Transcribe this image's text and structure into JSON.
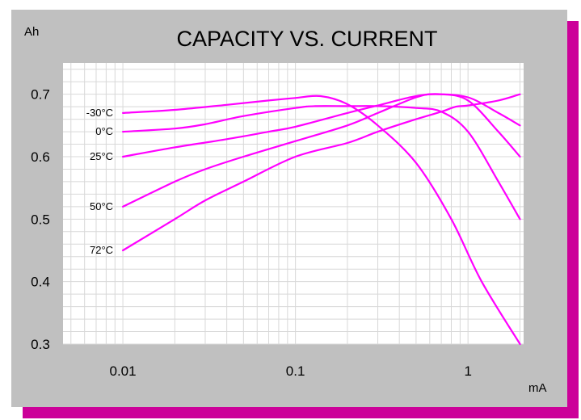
{
  "chart_data": {
    "type": "line",
    "title": "CAPACITY VS. CURRENT",
    "ylabel": "Ah",
    "xlabel": "mA",
    "x_scale": "log",
    "xlim": [
      0.0045,
      2.1
    ],
    "ylim": [
      0.3,
      0.75
    ],
    "grid": true,
    "legend": "inline labels at left end of each curve",
    "y_ticks": [
      {
        "value": 0.7,
        "label": "0.7"
      },
      {
        "value": 0.6,
        "label": "0.6"
      },
      {
        "value": 0.5,
        "label": "0.5"
      },
      {
        "value": 0.4,
        "label": "0.4"
      },
      {
        "value": 0.3,
        "label": "0.3"
      }
    ],
    "x_ticks": [
      {
        "value": 0.01,
        "label": "0.01"
      },
      {
        "value": 0.1,
        "label": "0.1"
      },
      {
        "value": 1,
        "label": "1"
      }
    ],
    "colors": {
      "series": "#ff00ff",
      "panel": "#c0c0c0",
      "shadow": "#cc0099",
      "plot_bg": "#ffffff",
      "grid": "#d8d8d8"
    },
    "series": [
      {
        "name": "-30°C",
        "x": [
          0.01,
          0.02,
          0.04,
          0.07,
          0.1,
          0.14,
          0.2,
          0.3,
          0.5,
          0.8,
          1.2,
          2
        ],
        "y": [
          0.67,
          0.675,
          0.683,
          0.69,
          0.694,
          0.697,
          0.684,
          0.65,
          0.59,
          0.5,
          0.4,
          0.3
        ]
      },
      {
        "name": "0°C",
        "x": [
          0.01,
          0.02,
          0.03,
          0.05,
          0.1,
          0.13,
          0.2,
          0.3,
          0.5,
          0.7,
          1,
          1.5,
          2
        ],
        "y": [
          0.64,
          0.645,
          0.652,
          0.665,
          0.678,
          0.681,
          0.681,
          0.681,
          0.678,
          0.672,
          0.64,
          0.56,
          0.5
        ]
      },
      {
        "name": "25°C",
        "x": [
          0.01,
          0.02,
          0.04,
          0.07,
          0.1,
          0.2,
          0.3,
          0.5,
          0.7,
          1,
          1.5,
          2
        ],
        "y": [
          0.6,
          0.615,
          0.628,
          0.64,
          0.648,
          0.67,
          0.682,
          0.697,
          0.7,
          0.69,
          0.64,
          0.6
        ]
      },
      {
        "name": "50°C",
        "x": [
          0.01,
          0.02,
          0.03,
          0.05,
          0.1,
          0.2,
          0.3,
          0.5,
          0.65,
          1,
          1.5,
          2
        ],
        "y": [
          0.52,
          0.56,
          0.58,
          0.6,
          0.625,
          0.65,
          0.67,
          0.695,
          0.7,
          0.695,
          0.67,
          0.65
        ]
      },
      {
        "name": "72°C",
        "x": [
          0.01,
          0.02,
          0.03,
          0.05,
          0.1,
          0.2,
          0.3,
          0.5,
          0.7,
          0.85,
          1,
          1.5,
          2
        ],
        "y": [
          0.45,
          0.5,
          0.53,
          0.56,
          0.6,
          0.622,
          0.64,
          0.66,
          0.672,
          0.68,
          0.682,
          0.69,
          0.7
        ]
      }
    ]
  }
}
